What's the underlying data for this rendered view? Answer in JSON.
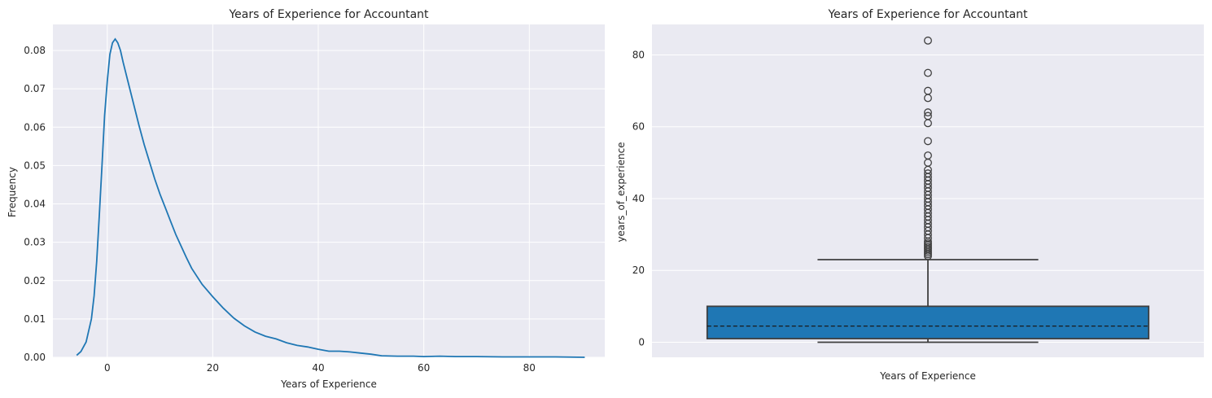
{
  "chart_data": [
    {
      "type": "line",
      "subtype": "kde",
      "title": "Years of Experience for Accountant",
      "xlabel": "Years of Experience",
      "ylabel": "Frequency",
      "xlim": [
        -10.3,
        94.3
      ],
      "ylim": [
        0,
        0.0868
      ],
      "xticks": [
        0,
        20,
        40,
        60,
        80
      ],
      "yticks": [
        0.0,
        0.01,
        0.02,
        0.03,
        0.04,
        0.05,
        0.06,
        0.07,
        0.08
      ],
      "ytick_labels": [
        "0.00",
        "0.01",
        "0.02",
        "0.03",
        "0.04",
        "0.05",
        "0.06",
        "0.07",
        "0.08"
      ],
      "grid": true,
      "color": "#1f77b4",
      "series": [
        {
          "x": [
            -5.8,
            -5,
            -4,
            -3,
            -2.5,
            -2,
            -1.5,
            -1,
            -0.5,
            0,
            0.5,
            1,
            1.5,
            2,
            2.5,
            3,
            4,
            5,
            6,
            7,
            8,
            9,
            10,
            11,
            12,
            13,
            14,
            15,
            16,
            18,
            20,
            22,
            24,
            26,
            28,
            30,
            32,
            34,
            36,
            38,
            40,
            42,
            44,
            46,
            48,
            50,
            52,
            55,
            58,
            60,
            63,
            66,
            70,
            75,
            80,
            85,
            90.5
          ],
          "y": [
            0.0005,
            0.0015,
            0.004,
            0.01,
            0.016,
            0.025,
            0.037,
            0.05,
            0.063,
            0.072,
            0.079,
            0.082,
            0.083,
            0.082,
            0.08,
            0.077,
            0.0715,
            0.066,
            0.0605,
            0.0555,
            0.051,
            0.0465,
            0.0425,
            0.039,
            0.0355,
            0.032,
            0.029,
            0.026,
            0.0232,
            0.019,
            0.0158,
            0.0128,
            0.0102,
            0.0082,
            0.0066,
            0.0055,
            0.0048,
            0.0038,
            0.0031,
            0.0027,
            0.0021,
            0.0016,
            0.0016,
            0.0014,
            0.0011,
            0.0008,
            0.0004,
            0.0003,
            0.0003,
            0.0002,
            0.0003,
            0.0002,
            0.0002,
            0.0001,
            0.0001,
            0.0001,
            0.0
          ]
        }
      ]
    },
    {
      "type": "box",
      "title": "Years of Experience for Accountant",
      "xlabel": "Years of Experience",
      "ylabel": "years_of_experience",
      "ylim": [
        -4.2,
        88.5
      ],
      "yticks": [
        0,
        20,
        40,
        60,
        80
      ],
      "grid": true,
      "color": "#1f77b4",
      "box": {
        "whisker_low": 0,
        "q1": 1,
        "median": 4.5,
        "q3": 10,
        "whisker_high": 23,
        "median_style": "dashed"
      },
      "outliers": [
        24,
        24.5,
        25,
        25.5,
        26,
        26.5,
        27,
        27.5,
        28,
        29,
        30,
        31,
        32,
        33,
        34,
        35,
        36,
        37,
        38,
        39,
        40,
        41,
        42,
        43,
        44,
        45,
        46,
        47,
        48,
        50,
        52,
        56,
        61,
        63,
        64,
        68,
        70,
        75,
        84
      ]
    }
  ]
}
